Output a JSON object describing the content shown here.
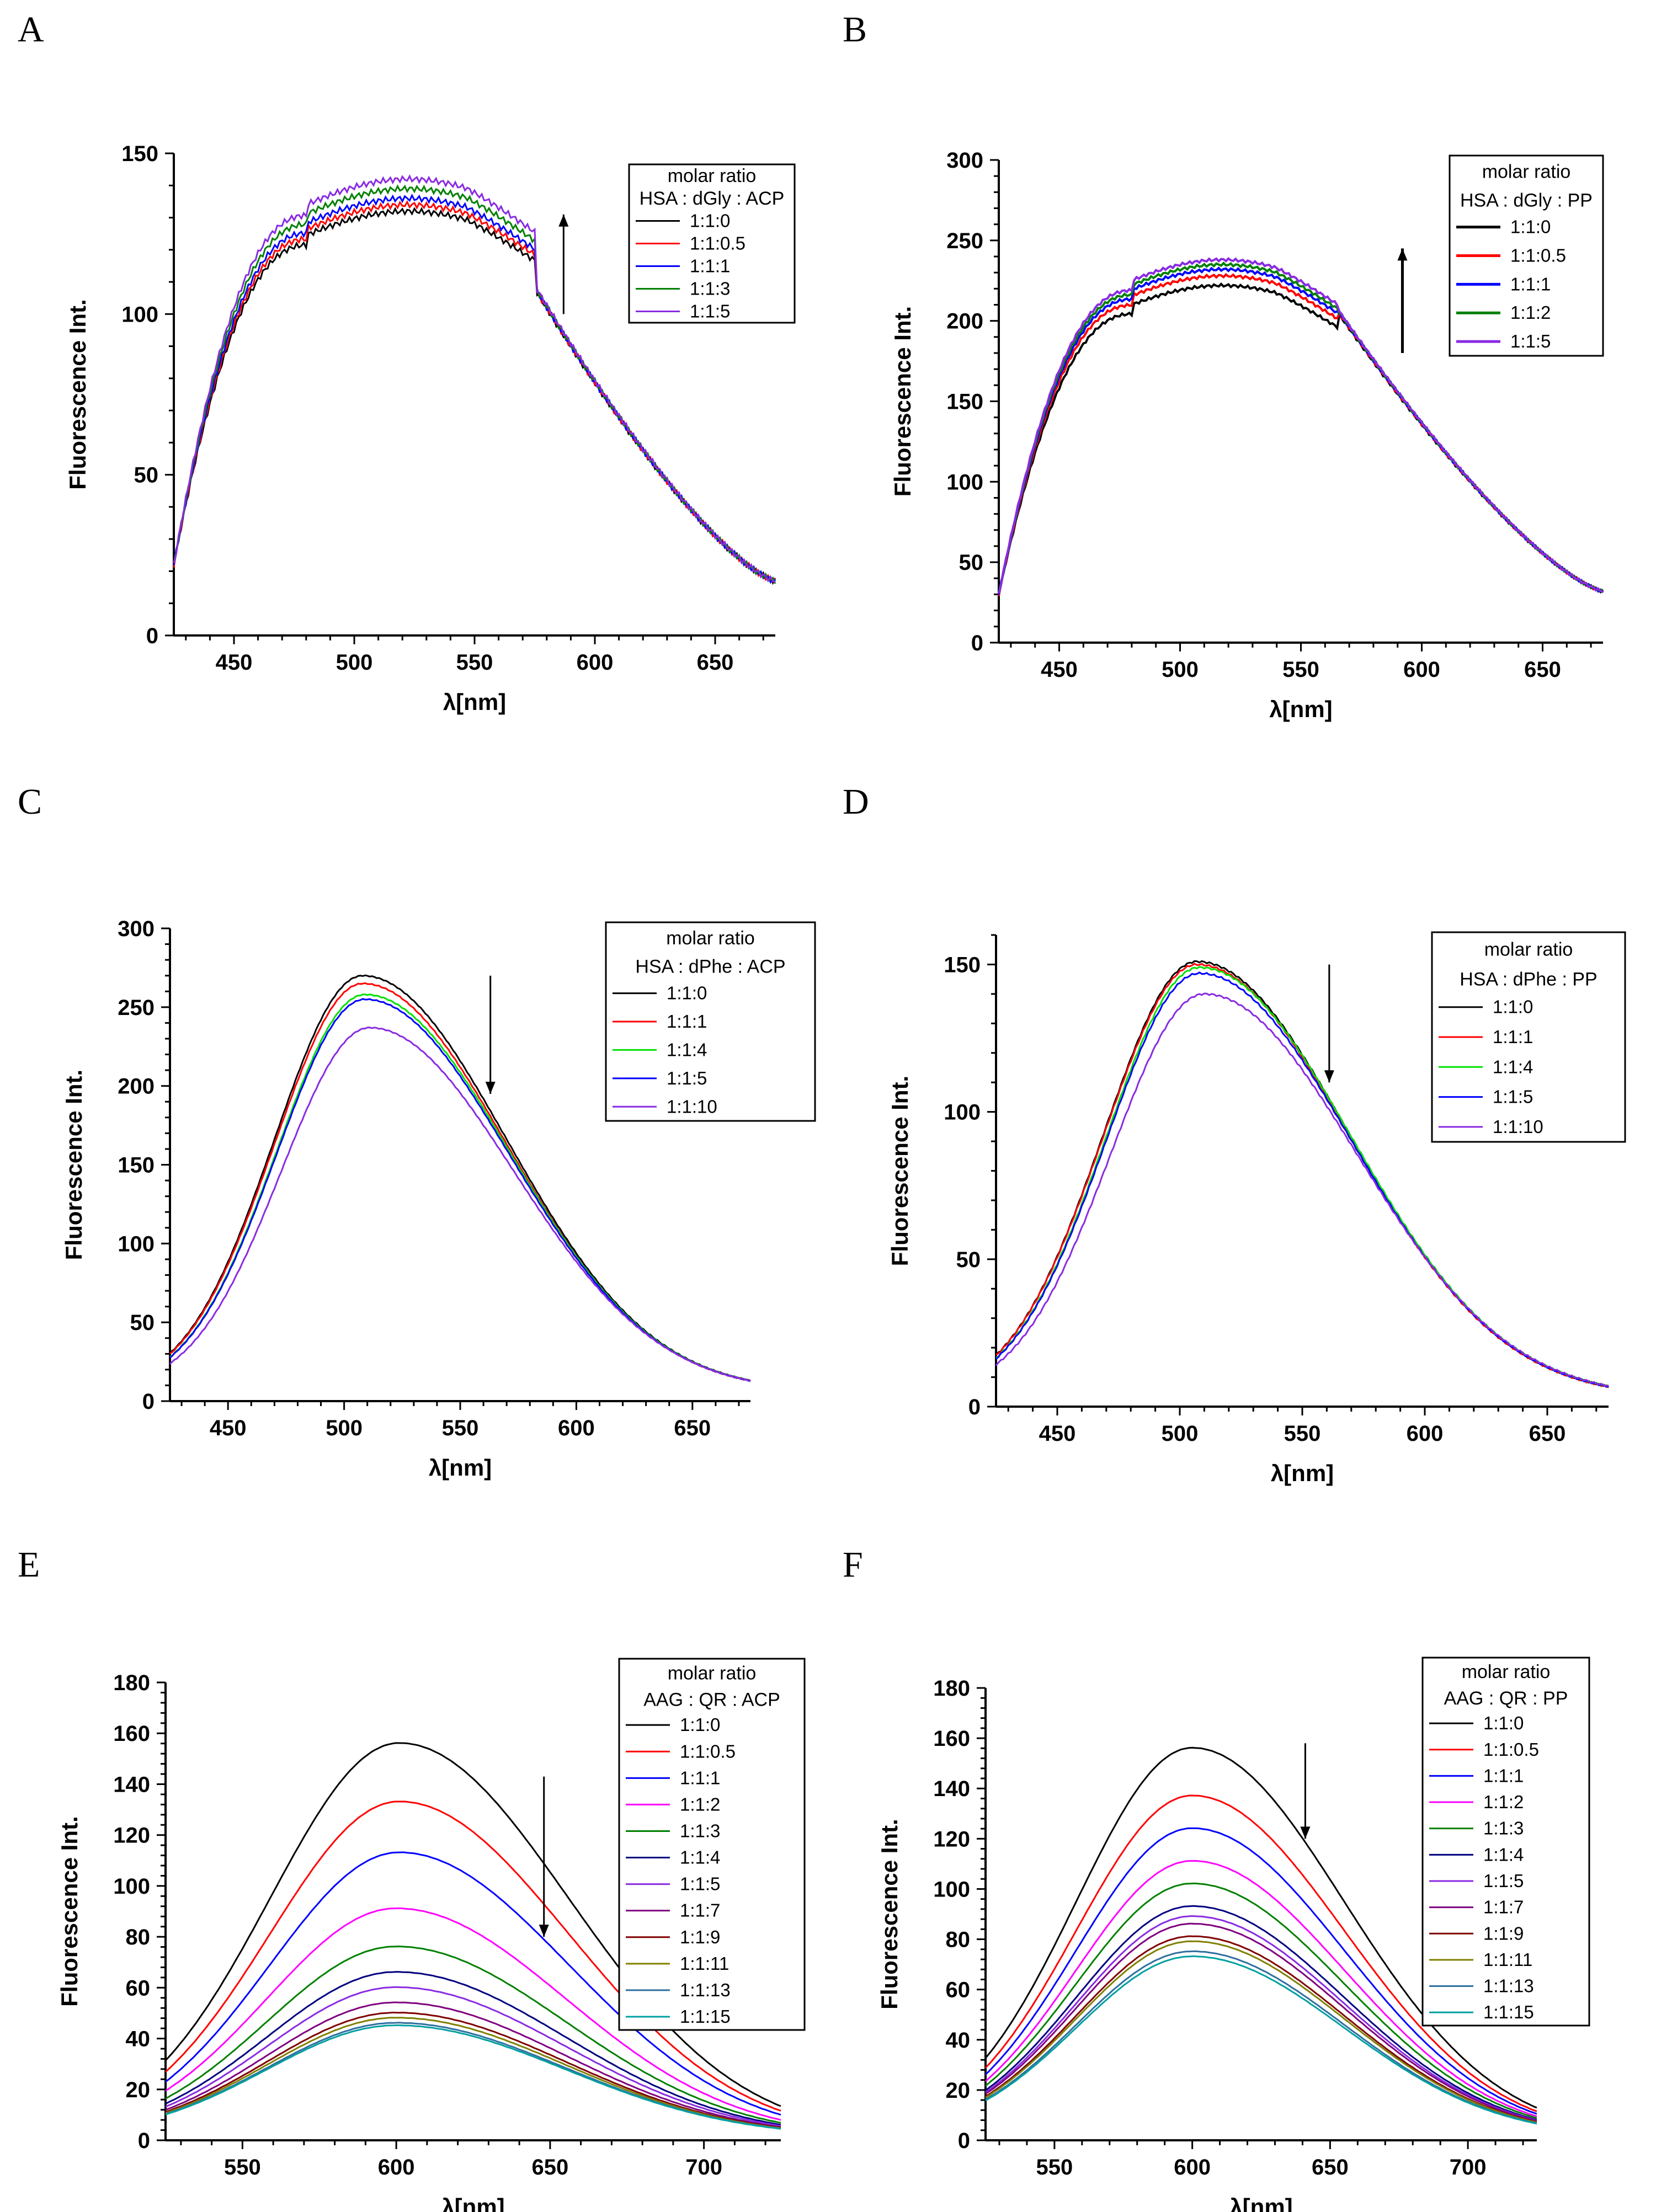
{
  "figure": {
    "colors": {
      "black": "#000000",
      "red": "#ff0000",
      "blue": "#0000ff",
      "green": "#008000",
      "violet": "#8a2be2",
      "brightgreen": "#00e000",
      "magenta": "#ff00ff",
      "darkgreen": "#006400",
      "navy": "#000080",
      "purple": "#800080",
      "maroon": "#800000",
      "olive": "#808000",
      "teal": "#008080",
      "cyan": "#00a0a0"
    }
  },
  "chart_data": [
    {
      "panel": "A",
      "type": "line",
      "xlabel": "λ[nm]",
      "ylabel": "Fluorescence Int.",
      "xlim": [
        425,
        675
      ],
      "ylim": [
        0,
        150
      ],
      "xticks": [
        450,
        500,
        550,
        600,
        650
      ],
      "yticks": [
        0,
        50,
        100,
        150
      ],
      "legend_title": [
        "molar ratio",
        "HSA : dGly : ACP"
      ],
      "arrow": {
        "direction": "up",
        "x": 587,
        "y_from": 100,
        "y_to": 131
      },
      "series": [
        {
          "name": "1:1:0",
          "color": "#000000",
          "peak": 132,
          "peak_x": 500
        },
        {
          "name": "1:1:0.5",
          "color": "#ff0000",
          "peak": 134,
          "peak_x": 500
        },
        {
          "name": "1:1:1",
          "color": "#0000ff",
          "peak": 136,
          "peak_x": 497
        },
        {
          "name": "1:1:3",
          "color": "#008000",
          "peak": 139,
          "peak_x": 495
        },
        {
          "name": "1:1:5",
          "color": "#8a2be2",
          "peak": 142,
          "peak_x": 492
        }
      ]
    },
    {
      "panel": "B",
      "type": "line",
      "xlabel": "λ[nm]",
      "ylabel": "Fluorescence Int.",
      "xlim": [
        425,
        675
      ],
      "ylim": [
        0,
        300
      ],
      "xticks": [
        450,
        500,
        550,
        600,
        650
      ],
      "yticks": [
        0,
        50,
        100,
        150,
        200,
        250,
        300
      ],
      "legend_title": [
        "molar ratio",
        "HSA : dGly : PP"
      ],
      "arrow": {
        "direction": "up",
        "x": 592,
        "y_from": 180,
        "y_to": 245
      },
      "series": [
        {
          "name": "1:1:0",
          "color": "#000000",
          "peak": 222,
          "peak_x": 525
        },
        {
          "name": "1:1:0.5",
          "color": "#ff0000",
          "peak": 228,
          "peak_x": 522
        },
        {
          "name": "1:1:1",
          "color": "#0000ff",
          "peak": 232,
          "peak_x": 520
        },
        {
          "name": "1:1:2",
          "color": "#008000",
          "peak": 235,
          "peak_x": 517
        },
        {
          "name": "1:1:5",
          "color": "#8a2be2",
          "peak": 238,
          "peak_x": 515
        }
      ]
    },
    {
      "panel": "C",
      "type": "line",
      "xlabel": "λ[nm]",
      "ylabel": "Fluorescence Int.",
      "xlim": [
        425,
        675
      ],
      "ylim": [
        0,
        300
      ],
      "xticks": [
        450,
        500,
        550,
        600,
        650
      ],
      "yticks": [
        0,
        50,
        100,
        150,
        200,
        250,
        300
      ],
      "legend_title": [
        "molar ratio",
        "HSA : dPhe : ACP"
      ],
      "arrow": {
        "direction": "down",
        "x": 563,
        "y_from": 270,
        "y_to": 195
      },
      "series": [
        {
          "name": "1:1:0",
          "color": "#000000",
          "peak": 270,
          "peak_x": 508
        },
        {
          "name": "1:1:1",
          "color": "#ff0000",
          "peak": 265,
          "peak_x": 508
        },
        {
          "name": "1:1:4",
          "color": "#00e000",
          "peak": 258,
          "peak_x": 509
        },
        {
          "name": "1:1:5",
          "color": "#0000ff",
          "peak": 255,
          "peak_x": 509
        },
        {
          "name": "1:1:10",
          "color": "#8a2be2",
          "peak": 237,
          "peak_x": 511
        }
      ]
    },
    {
      "panel": "D",
      "type": "line",
      "xlabel": "λ[nm]",
      "ylabel": "Fluorescence Int.",
      "xlim": [
        425,
        675
      ],
      "ylim": [
        0,
        160
      ],
      "xticks": [
        450,
        500,
        550,
        600,
        650
      ],
      "yticks": [
        0,
        50,
        100,
        150
      ],
      "legend_title": [
        "molar ratio",
        "HSA : dPhe : PP"
      ],
      "arrow": {
        "direction": "down",
        "x": 561,
        "y_from": 150,
        "y_to": 110
      },
      "series": [
        {
          "name": "1:1:0",
          "color": "#000000",
          "peak": 151,
          "peak_x": 507
        },
        {
          "name": "1:1:1",
          "color": "#ff0000",
          "peak": 150,
          "peak_x": 507
        },
        {
          "name": "1:1:4",
          "color": "#00e000",
          "peak": 149,
          "peak_x": 508
        },
        {
          "name": "1:1:5",
          "color": "#0000ff",
          "peak": 147,
          "peak_x": 508
        },
        {
          "name": "1:1:10",
          "color": "#8a2be2",
          "peak": 140,
          "peak_x": 510
        }
      ]
    },
    {
      "panel": "E",
      "type": "line",
      "xlabel": "λ[nm]",
      "ylabel": "Fluorescence Int.",
      "xlim": [
        525,
        725
      ],
      "ylim": [
        0,
        180
      ],
      "xticks": [
        550,
        600,
        650,
        700
      ],
      "yticks": [
        0,
        20,
        40,
        60,
        80,
        100,
        120,
        140,
        160,
        180
      ],
      "legend_title": [
        "molar ratio",
        "AAG : QR : ACP"
      ],
      "arrow": {
        "direction": "down",
        "x": 648,
        "y_from": 143,
        "y_to": 80
      },
      "series": [
        {
          "name": "1:1:0",
          "color": "#000000",
          "peak": 155,
          "peak_x": 601
        },
        {
          "name": "1:1:0.5",
          "color": "#ff0000",
          "peak": 132,
          "peak_x": 601
        },
        {
          "name": "1:1:1",
          "color": "#0000ff",
          "peak": 112,
          "peak_x": 601
        },
        {
          "name": "1:1:2",
          "color": "#ff00ff",
          "peak": 90,
          "peak_x": 600
        },
        {
          "name": "1:1:3",
          "color": "#008000",
          "peak": 75,
          "peak_x": 600
        },
        {
          "name": "1:1:4",
          "color": "#000080",
          "peak": 65,
          "peak_x": 600
        },
        {
          "name": "1:1:5",
          "color": "#8a2be2",
          "peak": 59,
          "peak_x": 600
        },
        {
          "name": "1:1:7",
          "color": "#800080",
          "peak": 53,
          "peak_x": 600
        },
        {
          "name": "1:1:9",
          "color": "#800000",
          "peak": 49,
          "peak_x": 600
        },
        {
          "name": "1:1:11",
          "color": "#808000",
          "peak": 47,
          "peak_x": 600
        },
        {
          "name": "1:1:13",
          "color": "#2f6f9f",
          "peak": 45,
          "peak_x": 600
        },
        {
          "name": "1:1:15",
          "color": "#00a0a0",
          "peak": 44,
          "peak_x": 600
        }
      ]
    },
    {
      "panel": "F",
      "type": "line",
      "xlabel": "λ[nm]",
      "ylabel": "Fluorescence Int.",
      "xlim": [
        525,
        725
      ],
      "ylim": [
        0,
        180
      ],
      "xticks": [
        550,
        600,
        650,
        700
      ],
      "yticks": [
        0,
        20,
        40,
        60,
        80,
        100,
        120,
        140,
        160,
        180
      ],
      "legend_title": [
        "molar ratio",
        "AAG : QR : PP"
      ],
      "arrow": {
        "direction": "down",
        "x": 641,
        "y_from": 158,
        "y_to": 120
      },
      "series": [
        {
          "name": "1:1:0",
          "color": "#000000",
          "peak": 155,
          "peak_x": 600
        },
        {
          "name": "1:1:0.5",
          "color": "#ff0000",
          "peak": 136,
          "peak_x": 600
        },
        {
          "name": "1:1:1",
          "color": "#0000ff",
          "peak": 123,
          "peak_x": 600
        },
        {
          "name": "1:1:2",
          "color": "#ff00ff",
          "peak": 110,
          "peak_x": 600
        },
        {
          "name": "1:1:3",
          "color": "#008000",
          "peak": 101,
          "peak_x": 600
        },
        {
          "name": "1:1:4",
          "color": "#000080",
          "peak": 92,
          "peak_x": 600
        },
        {
          "name": "1:1:5",
          "color": "#8a2be2",
          "peak": 88,
          "peak_x": 600
        },
        {
          "name": "1:1:7",
          "color": "#800080",
          "peak": 85,
          "peak_x": 600
        },
        {
          "name": "1:1:9",
          "color": "#800000",
          "peak": 80,
          "peak_x": 600
        },
        {
          "name": "1:1:11",
          "color": "#808000",
          "peak": 78,
          "peak_x": 600
        },
        {
          "name": "1:1:13",
          "color": "#2f6f9f",
          "peak": 74,
          "peak_x": 600
        },
        {
          "name": "1:1:15",
          "color": "#00a0a0",
          "peak": 72,
          "peak_x": 600
        }
      ]
    }
  ]
}
